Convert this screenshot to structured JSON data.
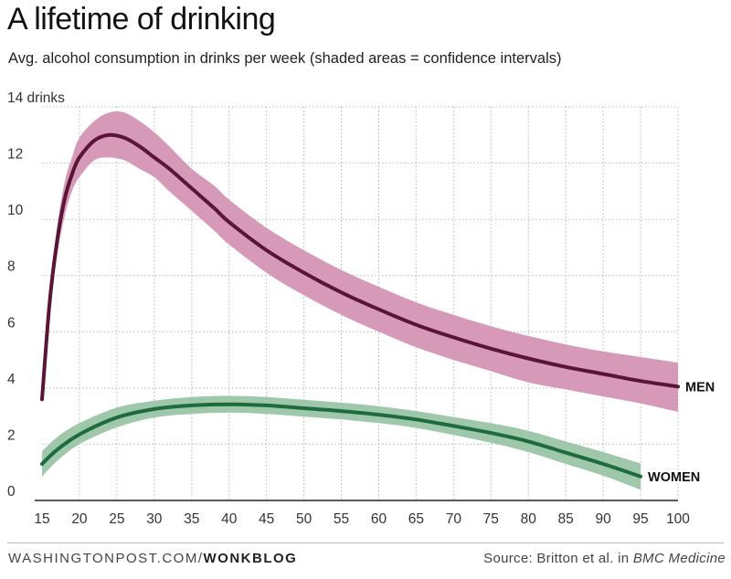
{
  "header": {
    "title": "A lifetime of drinking",
    "subtitle": "Avg. alcohol consumption in drinks per week (shaded areas = confidence intervals)"
  },
  "footer": {
    "site": "WASHINGTONPOST.COM/",
    "section": "WONKBLOG",
    "source_prefix": "Source: Britton et al. in ",
    "source_journal": "BMC Medicine"
  },
  "colors": {
    "men_line": "#5a1437",
    "men_band": "#d699b7",
    "women_line": "#1d6b3e",
    "women_band": "#9ec8a9",
    "grid": "#b5b5b5"
  },
  "chart_data": {
    "type": "line",
    "title": "A lifetime of drinking",
    "subtitle": "Avg. alcohol consumption in drinks per week (shaded areas = confidence intervals)",
    "xlabel": "",
    "ylabel": "",
    "xlim": [
      15,
      100
    ],
    "ylim": [
      0,
      14
    ],
    "x_ticks": [
      15,
      20,
      25,
      30,
      35,
      40,
      45,
      50,
      55,
      60,
      65,
      70,
      75,
      80,
      85,
      90,
      95,
      100
    ],
    "y_ticks": [
      0,
      2,
      4,
      6,
      8,
      10,
      12,
      14
    ],
    "y_top_tick_label": "14 drinks",
    "grid": true,
    "series": [
      {
        "name": "MEN",
        "x": [
          15,
          16,
          17,
          18,
          19,
          20,
          22,
          24,
          26,
          28,
          30,
          32,
          35,
          38,
          40,
          45,
          50,
          55,
          60,
          65,
          70,
          75,
          80,
          85,
          90,
          95,
          100
        ],
        "y": [
          3.6,
          7.0,
          9.2,
          10.7,
          11.6,
          12.2,
          12.8,
          13.0,
          12.9,
          12.6,
          12.2,
          11.8,
          11.1,
          10.4,
          9.9,
          8.9,
          8.1,
          7.4,
          6.8,
          6.25,
          5.8,
          5.4,
          5.05,
          4.75,
          4.5,
          4.25,
          4.05
        ],
        "lower": [
          3.6,
          6.6,
          8.7,
          10.1,
          11.0,
          11.5,
          12.1,
          12.2,
          12.1,
          11.8,
          11.5,
          11.0,
          10.3,
          9.6,
          9.1,
          8.1,
          7.3,
          6.6,
          6.0,
          5.45,
          5.0,
          4.6,
          4.2,
          3.95,
          3.7,
          3.45,
          3.15
        ],
        "upper": [
          3.6,
          7.4,
          9.7,
          11.3,
          12.2,
          12.9,
          13.5,
          13.8,
          13.8,
          13.5,
          13.1,
          12.6,
          11.8,
          11.2,
          10.7,
          9.7,
          8.9,
          8.2,
          7.6,
          7.05,
          6.6,
          6.2,
          5.85,
          5.55,
          5.3,
          5.1,
          4.9
        ]
      },
      {
        "name": "WOMEN",
        "x": [
          15,
          17,
          20,
          25,
          30,
          35,
          40,
          45,
          50,
          55,
          60,
          65,
          70,
          75,
          80,
          85,
          90,
          95
        ],
        "y": [
          1.3,
          1.8,
          2.35,
          2.95,
          3.25,
          3.38,
          3.42,
          3.38,
          3.28,
          3.18,
          3.05,
          2.88,
          2.65,
          2.4,
          2.1,
          1.7,
          1.3,
          0.85
        ],
        "lower": [
          0.85,
          1.4,
          2.0,
          2.6,
          2.95,
          3.08,
          3.12,
          3.08,
          2.98,
          2.88,
          2.75,
          2.58,
          2.33,
          2.05,
          1.72,
          1.3,
          0.88,
          0.38
        ],
        "upper": [
          1.75,
          2.25,
          2.75,
          3.3,
          3.55,
          3.68,
          3.72,
          3.68,
          3.58,
          3.48,
          3.35,
          3.18,
          2.97,
          2.75,
          2.48,
          2.1,
          1.72,
          1.32
        ]
      }
    ]
  }
}
